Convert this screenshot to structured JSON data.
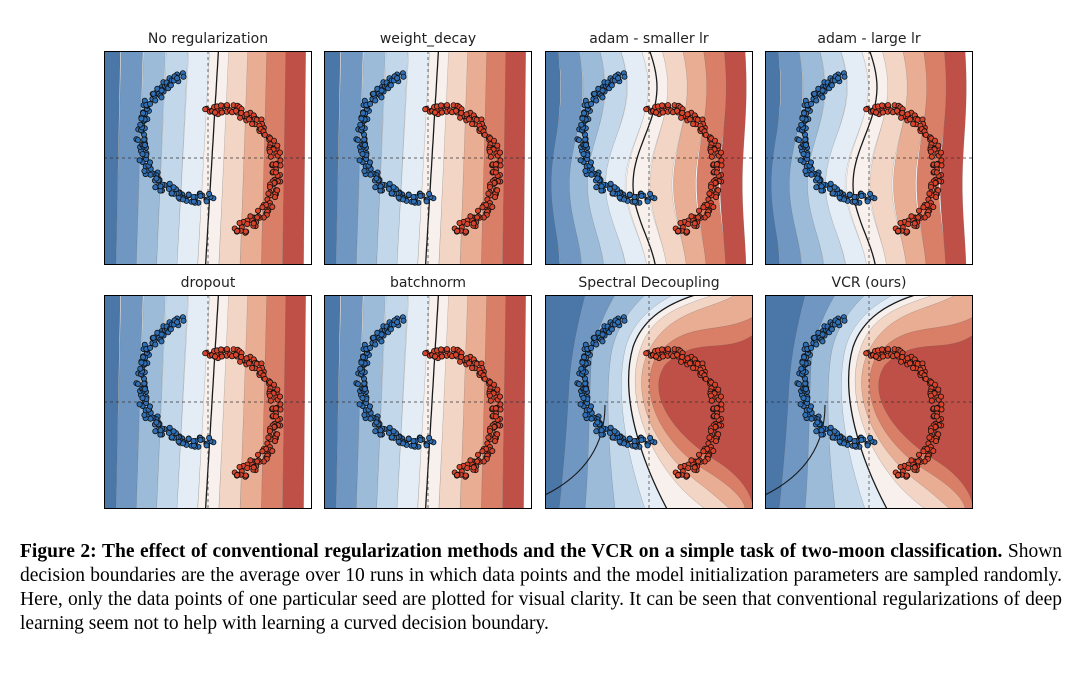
{
  "figure": {
    "panels": [
      {
        "title": "No regularization",
        "kind": "linear",
        "boundary": "linear"
      },
      {
        "title": "weight_decay",
        "kind": "linear",
        "boundary": "linear"
      },
      {
        "title": "adam - smaller lr",
        "kind": "wavy",
        "boundary": "wavy"
      },
      {
        "title": "adam - large lr",
        "kind": "wavy",
        "boundary": "wavy"
      },
      {
        "title": "dropout",
        "kind": "linear",
        "boundary": "linear"
      },
      {
        "title": "batchnorm",
        "kind": "linear",
        "boundary": "linear"
      },
      {
        "title": "Spectral Decoupling",
        "kind": "curved",
        "boundary": "curved"
      },
      {
        "title": "VCR (ours)",
        "kind": "curved",
        "boundary": "curved"
      }
    ],
    "colors": {
      "blue_dark": "#3b6ea8",
      "blue_light": "#d6e6f2",
      "red_dark": "#b2403e",
      "red_light": "#f6dfd4",
      "boundary_line": "#1a1a1a",
      "point_blue": "#2f6fb5",
      "point_red": "#d8442b"
    }
  },
  "caption": {
    "label": "Figure 2:",
    "bold_text": "The effect of conventional regularization methods and the VCR on a simple task of two-moon classification.",
    "body": "Shown decision boundaries are the average over 10 runs in which data points and the model initialization parameters are sampled randomly. Here, only the data points of one particular seed are plotted for visual clarity. It can be seen that conventional regularizations of deep learning seem not to help with learning a curved decision boundary."
  }
}
